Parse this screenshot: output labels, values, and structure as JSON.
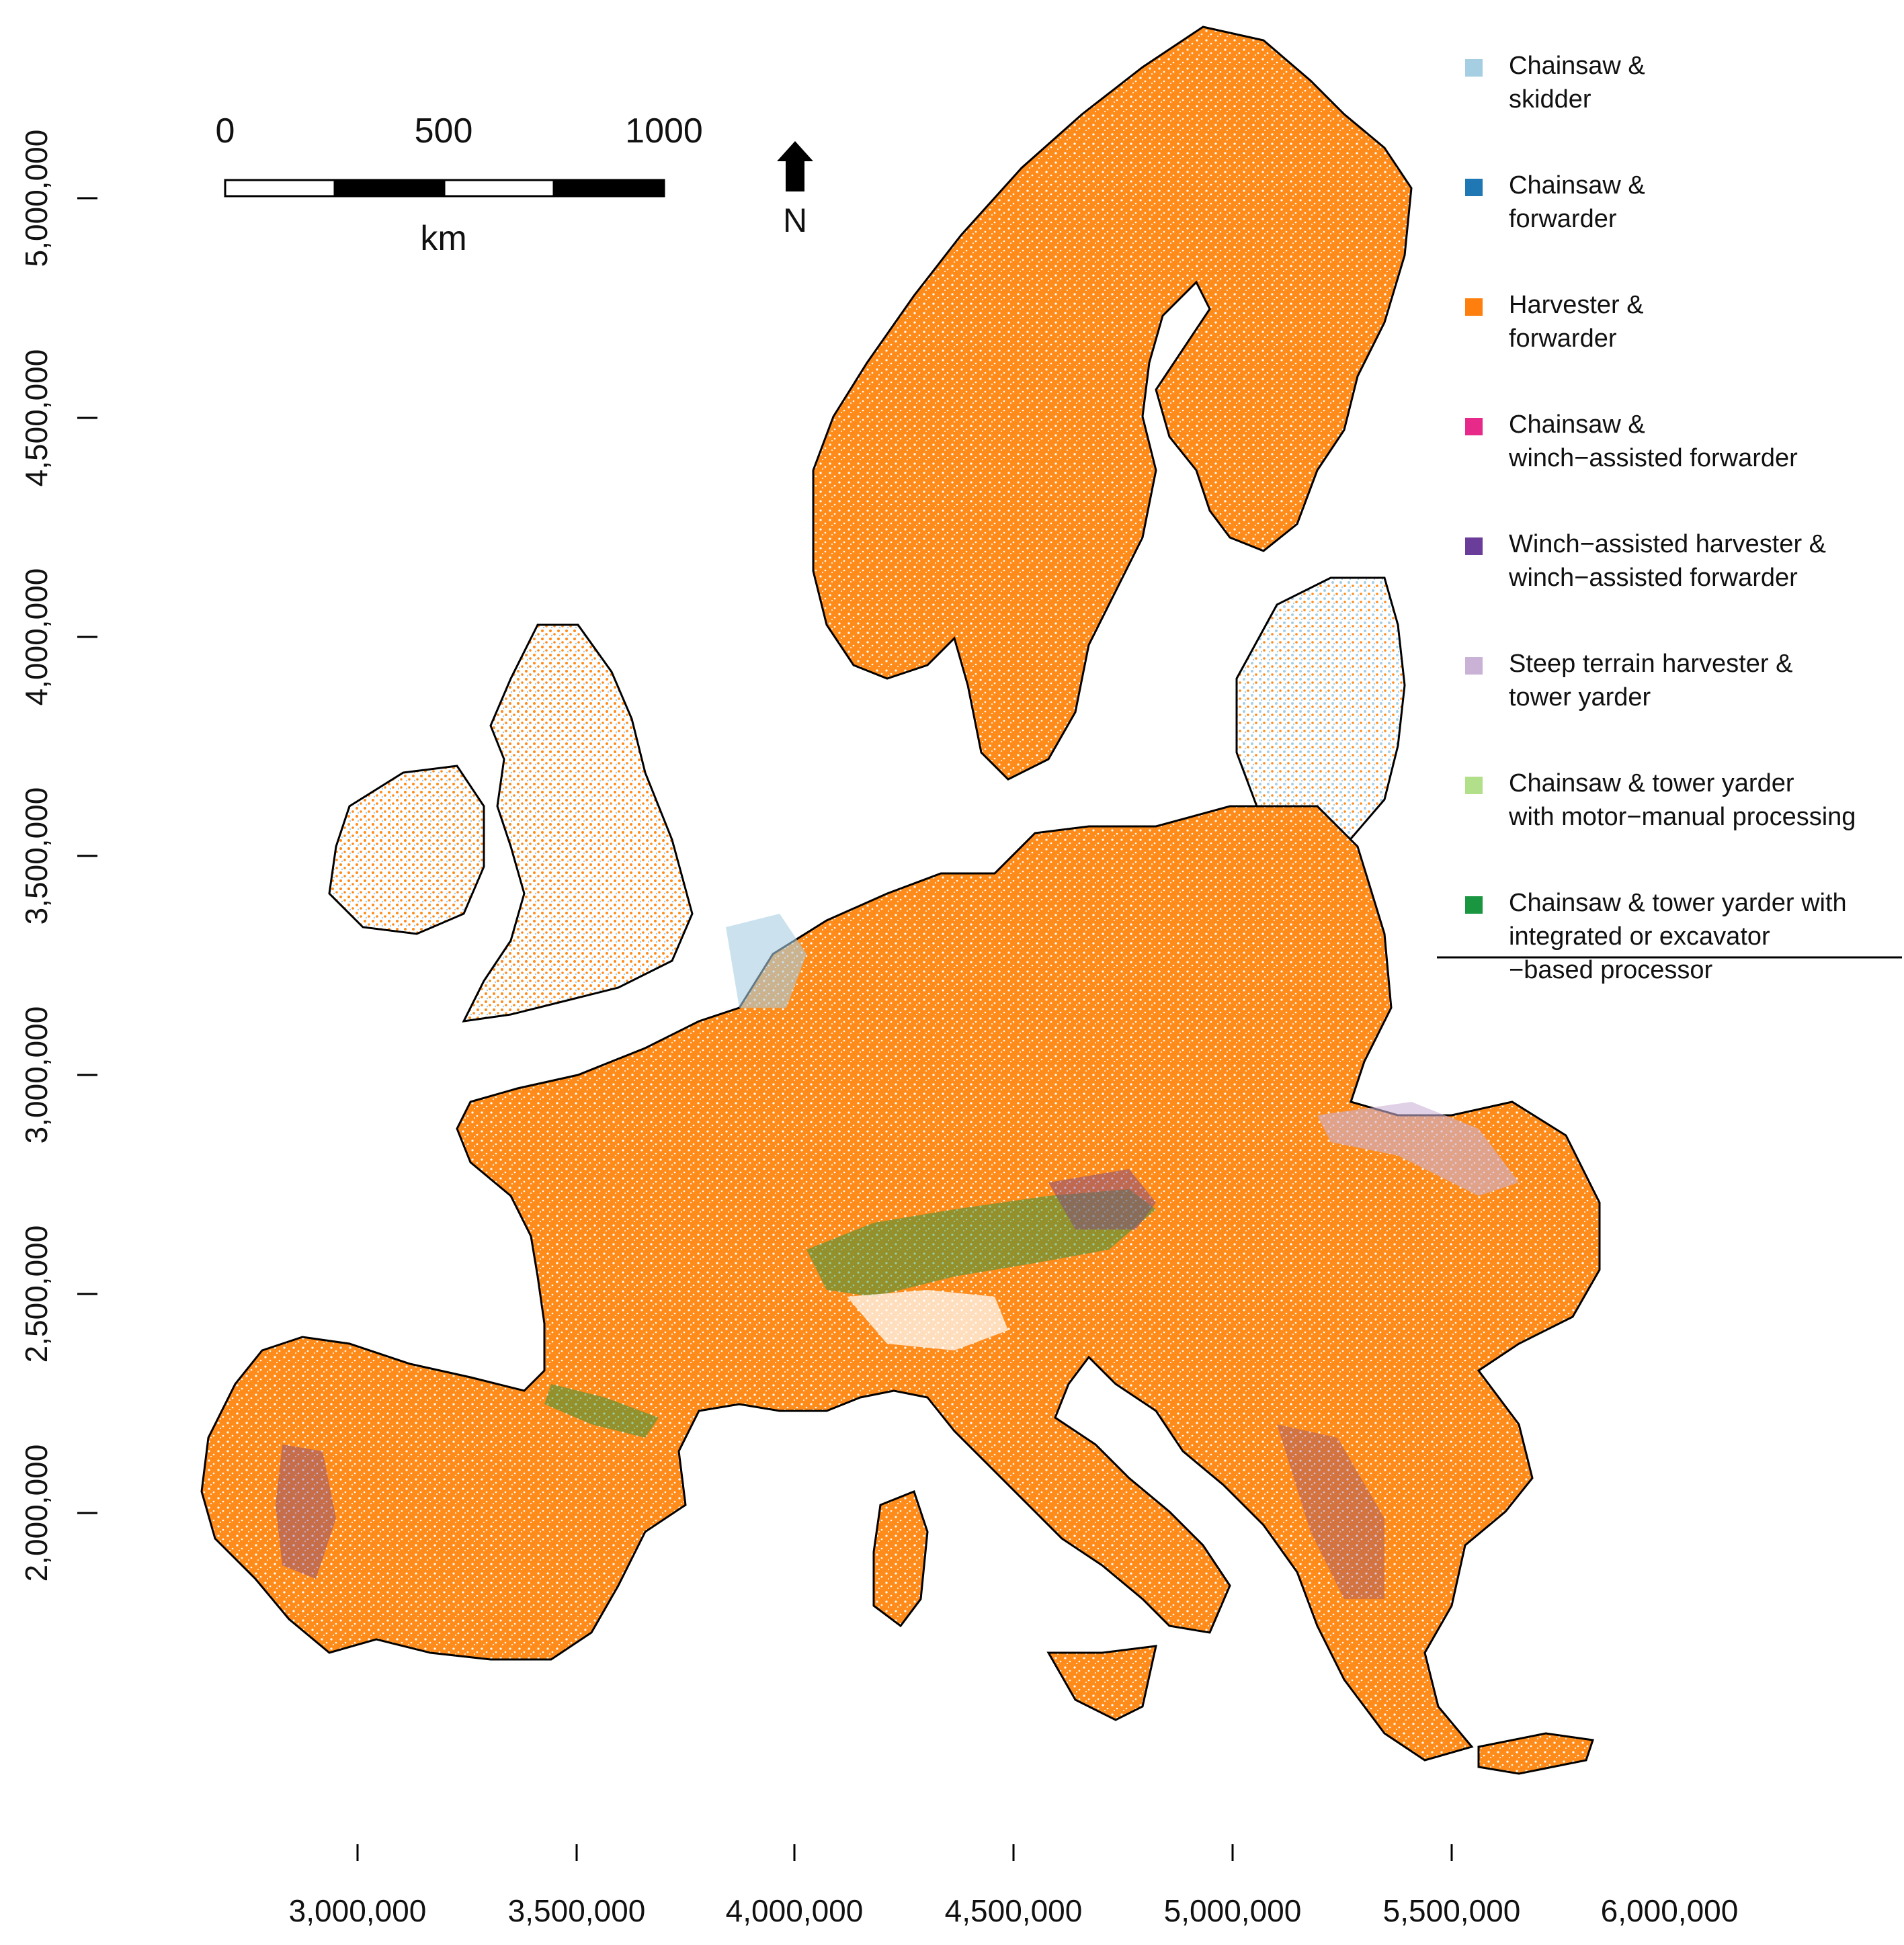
{
  "map": {
    "scale_bar": {
      "ticks": [
        "0",
        "500",
        "1000"
      ],
      "unit": "km"
    },
    "north_arrow": {
      "label": "N"
    },
    "x_axis": {
      "ticks": [
        "3,000,000",
        "3,500,000",
        "4,000,000",
        "4,500,000",
        "5,000,000",
        "5,500,000",
        "6,000,000"
      ]
    },
    "y_axis": {
      "ticks": [
        "5,000,000",
        "4,500,000",
        "4,000,000",
        "3,500,000",
        "3,000,000",
        "2,500,000",
        "2,000,000"
      ]
    },
    "legend": {
      "items": [
        {
          "lines": [
            "Chainsaw &",
            " skidder"
          ],
          "color": "#a6cee3"
        },
        {
          "lines": [
            "Chainsaw &",
            " forwarder"
          ],
          "color": "#1f78b4"
        },
        {
          "lines": [
            "Harvester &",
            " forwarder"
          ],
          "color": "#ff7f0e"
        },
        {
          "lines": [
            "Chainsaw &",
            " winch−assisted forwarder"
          ],
          "color": "#e7298a"
        },
        {
          "lines": [
            "Winch−assisted harvester &",
            " winch−assisted forwarder"
          ],
          "color": "#6a3d9a"
        },
        {
          "lines": [
            "Steep terrain harvester &",
            " tower yarder"
          ],
          "color": "#cab2d6"
        },
        {
          "lines": [
            "Chainsaw & tower yarder",
            " with motor−manual processing"
          ],
          "color": "#b2df8a"
        },
        {
          "lines": [
            "Chainsaw & tower yarder with",
            " integrated or excavator",
            " −based processor"
          ],
          "color": "#1a9641"
        }
      ]
    }
  }
}
